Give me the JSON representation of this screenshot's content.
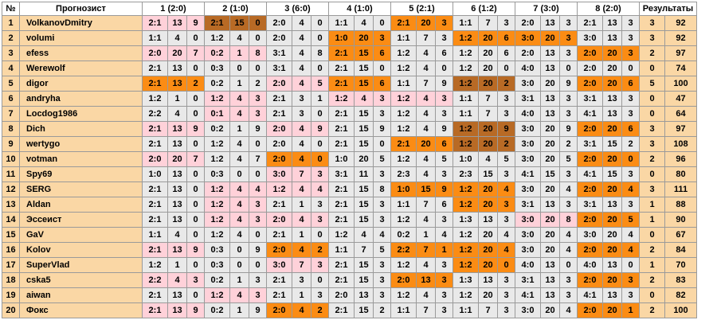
{
  "columns": {
    "num": "№",
    "name": "Прогнозист",
    "matches": [
      "1 (2:0)",
      "2 (1:0)",
      "3 (6:0)",
      "4 (1:0)",
      "5 (2:1)",
      "6 (1:2)",
      "7 (3:0)",
      "8 (2:0)"
    ],
    "results": "Результаты"
  },
  "colors": {
    "gray": "#e9e9e9",
    "pink": "#ffd1d9",
    "orange": "#fb8c14",
    "brown": "#b86a25",
    "name_bg": "#fad7a5"
  },
  "rows": [
    {
      "num": "1",
      "name": "VolkanovDmitry",
      "cells": [
        [
          "2:1",
          "13",
          "9",
          "p"
        ],
        [
          "2:1",
          "15",
          "0",
          "b"
        ],
        [
          "2:0",
          "4",
          "0",
          "g"
        ],
        [
          "1:1",
          "4",
          "0",
          "g"
        ],
        [
          "2:1",
          "20",
          "3",
          "o"
        ],
        [
          "1:1",
          "7",
          "3",
          "g"
        ],
        [
          "2:0",
          "13",
          "3",
          "g"
        ],
        [
          "2:1",
          "13",
          "3",
          "g"
        ]
      ],
      "r1": "3",
      "r2": "92"
    },
    {
      "num": "2",
      "name": "volumi",
      "cells": [
        [
          "1:1",
          "4",
          "0",
          "g"
        ],
        [
          "1:2",
          "4",
          "0",
          "g"
        ],
        [
          "2:0",
          "4",
          "0",
          "g"
        ],
        [
          "1:0",
          "20",
          "3",
          "o"
        ],
        [
          "1:1",
          "7",
          "3",
          "g"
        ],
        [
          "1:2",
          "20",
          "6",
          "o"
        ],
        [
          "3:0",
          "20",
          "3",
          "o"
        ],
        [
          "3:0",
          "13",
          "3",
          "g"
        ]
      ],
      "r1": "3",
      "r2": "92"
    },
    {
      "num": "3",
      "name": "efess",
      "cells": [
        [
          "2:0",
          "20",
          "7",
          "p"
        ],
        [
          "0:2",
          "1",
          "8",
          "p"
        ],
        [
          "3:1",
          "4",
          "8",
          "g"
        ],
        [
          "2:1",
          "15",
          "6",
          "o"
        ],
        [
          "1:2",
          "4",
          "6",
          "g"
        ],
        [
          "1:2",
          "20",
          "6",
          "g"
        ],
        [
          "2:0",
          "13",
          "3",
          "g"
        ],
        [
          "2:0",
          "20",
          "3",
          "o"
        ]
      ],
      "r1": "2",
      "r2": "97"
    },
    {
      "num": "4",
      "name": "Werewolf",
      "cells": [
        [
          "2:1",
          "13",
          "0",
          "g"
        ],
        [
          "0:3",
          "0",
          "0",
          "g"
        ],
        [
          "3:1",
          "4",
          "0",
          "g"
        ],
        [
          "2:1",
          "15",
          "0",
          "g"
        ],
        [
          "1:2",
          "4",
          "0",
          "g"
        ],
        [
          "1:2",
          "20",
          "0",
          "g"
        ],
        [
          "4:0",
          "13",
          "0",
          "g"
        ],
        [
          "2:0",
          "20",
          "0",
          "g"
        ]
      ],
      "r1": "0",
      "r2": "74"
    },
    {
      "num": "5",
      "name": "digor",
      "cells": [
        [
          "2:1",
          "13",
          "2",
          "o"
        ],
        [
          "0:2",
          "1",
          "2",
          "g"
        ],
        [
          "2:0",
          "4",
          "5",
          "p"
        ],
        [
          "2:1",
          "15",
          "6",
          "o"
        ],
        [
          "1:1",
          "7",
          "9",
          "g"
        ],
        [
          "1:2",
          "20",
          "2",
          "b"
        ],
        [
          "3:0",
          "20",
          "9",
          "g"
        ],
        [
          "2:0",
          "20",
          "6",
          "o"
        ]
      ],
      "r1": "5",
      "r2": "100"
    },
    {
      "num": "6",
      "name": "andryha",
      "cells": [
        [
          "1:2",
          "1",
          "0",
          "g"
        ],
        [
          "1:2",
          "4",
          "3",
          "p"
        ],
        [
          "2:1",
          "3",
          "1",
          "g"
        ],
        [
          "1:2",
          "4",
          "3",
          "p"
        ],
        [
          "1:2",
          "4",
          "3",
          "p"
        ],
        [
          "1:1",
          "7",
          "3",
          "g"
        ],
        [
          "3:1",
          "13",
          "3",
          "g"
        ],
        [
          "3:1",
          "13",
          "3",
          "g"
        ]
      ],
      "r1": "0",
      "r2": "47"
    },
    {
      "num": "7",
      "name": "Locdog1986",
      "cells": [
        [
          "2:2",
          "4",
          "0",
          "g"
        ],
        [
          "0:1",
          "4",
          "3",
          "p"
        ],
        [
          "2:1",
          "3",
          "0",
          "g"
        ],
        [
          "2:1",
          "15",
          "3",
          "g"
        ],
        [
          "1:2",
          "4",
          "3",
          "g"
        ],
        [
          "1:1",
          "7",
          "3",
          "g"
        ],
        [
          "4:0",
          "13",
          "3",
          "g"
        ],
        [
          "4:1",
          "13",
          "3",
          "g"
        ]
      ],
      "r1": "0",
      "r2": "64"
    },
    {
      "num": "8",
      "name": "Dich",
      "cells": [
        [
          "2:1",
          "13",
          "9",
          "p"
        ],
        [
          "0:2",
          "1",
          "9",
          "g"
        ],
        [
          "2:0",
          "4",
          "9",
          "p"
        ],
        [
          "2:1",
          "15",
          "9",
          "g"
        ],
        [
          "1:2",
          "4",
          "9",
          "g"
        ],
        [
          "1:2",
          "20",
          "9",
          "b"
        ],
        [
          "3:0",
          "20",
          "9",
          "g"
        ],
        [
          "2:0",
          "20",
          "6",
          "o"
        ]
      ],
      "r1": "3",
      "r2": "97"
    },
    {
      "num": "9",
      "name": "wertygo",
      "cells": [
        [
          "2:1",
          "13",
          "0",
          "g"
        ],
        [
          "1:2",
          "4",
          "0",
          "g"
        ],
        [
          "2:0",
          "4",
          "0",
          "g"
        ],
        [
          "2:1",
          "15",
          "0",
          "g"
        ],
        [
          "2:1",
          "20",
          "6",
          "o"
        ],
        [
          "1:2",
          "20",
          "2",
          "b"
        ],
        [
          "3:0",
          "20",
          "2",
          "g"
        ],
        [
          "3:1",
          "15",
          "2",
          "g"
        ]
      ],
      "r1": "3",
      "r2": "108"
    },
    {
      "num": "10",
      "name": "votman",
      "cells": [
        [
          "2:0",
          "20",
          "7",
          "p"
        ],
        [
          "1:2",
          "4",
          "7",
          "g"
        ],
        [
          "2:0",
          "4",
          "0",
          "o"
        ],
        [
          "1:0",
          "20",
          "5",
          "g"
        ],
        [
          "1:2",
          "4",
          "5",
          "g"
        ],
        [
          "1:0",
          "4",
          "5",
          "g"
        ],
        [
          "3:0",
          "20",
          "5",
          "g"
        ],
        [
          "2:0",
          "20",
          "0",
          "o"
        ]
      ],
      "r1": "2",
      "r2": "96"
    },
    {
      "num": "11",
      "name": "Spy69",
      "cells": [
        [
          "1:0",
          "13",
          "0",
          "g"
        ],
        [
          "0:3",
          "0",
          "0",
          "g"
        ],
        [
          "3:0",
          "7",
          "3",
          "p"
        ],
        [
          "3:1",
          "11",
          "3",
          "g"
        ],
        [
          "2:3",
          "4",
          "3",
          "g"
        ],
        [
          "2:3",
          "15",
          "3",
          "g"
        ],
        [
          "4:1",
          "15",
          "3",
          "g"
        ],
        [
          "4:1",
          "15",
          "3",
          "g"
        ]
      ],
      "r1": "0",
      "r2": "80"
    },
    {
      "num": "12",
      "name": "SERG",
      "cells": [
        [
          "2:1",
          "13",
          "0",
          "g"
        ],
        [
          "1:2",
          "4",
          "4",
          "p"
        ],
        [
          "1:2",
          "4",
          "4",
          "p"
        ],
        [
          "2:1",
          "15",
          "8",
          "g"
        ],
        [
          "1:0",
          "15",
          "9",
          "o"
        ],
        [
          "1:2",
          "20",
          "4",
          "o"
        ],
        [
          "3:0",
          "20",
          "4",
          "g"
        ],
        [
          "2:0",
          "20",
          "4",
          "o"
        ]
      ],
      "r1": "3",
      "r2": "111"
    },
    {
      "num": "13",
      "name": "Aldan",
      "cells": [
        [
          "2:1",
          "13",
          "0",
          "g"
        ],
        [
          "1:2",
          "4",
          "3",
          "p"
        ],
        [
          "2:1",
          "1",
          "3",
          "g"
        ],
        [
          "2:1",
          "15",
          "3",
          "g"
        ],
        [
          "1:1",
          "7",
          "6",
          "g"
        ],
        [
          "1:2",
          "20",
          "3",
          "o"
        ],
        [
          "3:1",
          "13",
          "3",
          "g"
        ],
        [
          "3:1",
          "13",
          "3",
          "g"
        ]
      ],
      "r1": "1",
      "r2": "88"
    },
    {
      "num": "14",
      "name": "Эссеист",
      "cells": [
        [
          "2:1",
          "13",
          "0",
          "g"
        ],
        [
          "1:2",
          "4",
          "3",
          "p"
        ],
        [
          "2:0",
          "4",
          "3",
          "p"
        ],
        [
          "2:1",
          "15",
          "3",
          "g"
        ],
        [
          "1:2",
          "4",
          "3",
          "g"
        ],
        [
          "1:3",
          "13",
          "3",
          "g"
        ],
        [
          "3:0",
          "20",
          "8",
          "p"
        ],
        [
          "2:0",
          "20",
          "5",
          "o"
        ]
      ],
      "r1": "1",
      "r2": "90"
    },
    {
      "num": "15",
      "name": "GaV",
      "cells": [
        [
          "1:1",
          "4",
          "0",
          "g"
        ],
        [
          "1:2",
          "4",
          "0",
          "g"
        ],
        [
          "2:1",
          "1",
          "0",
          "g"
        ],
        [
          "1:2",
          "4",
          "4",
          "g"
        ],
        [
          "0:2",
          "1",
          "4",
          "g"
        ],
        [
          "1:2",
          "20",
          "4",
          "g"
        ],
        [
          "3:0",
          "20",
          "4",
          "g"
        ],
        [
          "3:0",
          "20",
          "4",
          "g"
        ]
      ],
      "r1": "0",
      "r2": "67"
    },
    {
      "num": "16",
      "name": "Kolov",
      "cells": [
        [
          "2:1",
          "13",
          "9",
          "p"
        ],
        [
          "0:3",
          "0",
          "9",
          "g"
        ],
        [
          "2:0",
          "4",
          "2",
          "o"
        ],
        [
          "1:1",
          "7",
          "5",
          "g"
        ],
        [
          "2:2",
          "7",
          "1",
          "o"
        ],
        [
          "1:2",
          "20",
          "4",
          "o"
        ],
        [
          "3:0",
          "20",
          "4",
          "g"
        ],
        [
          "2:0",
          "20",
          "4",
          "o"
        ]
      ],
      "r1": "2",
      "r2": "84"
    },
    {
      "num": "17",
      "name": "SuperVlad",
      "cells": [
        [
          "1:2",
          "1",
          "0",
          "g"
        ],
        [
          "0:3",
          "0",
          "0",
          "g"
        ],
        [
          "3:0",
          "7",
          "3",
          "p"
        ],
        [
          "2:1",
          "15",
          "3",
          "g"
        ],
        [
          "1:2",
          "4",
          "3",
          "g"
        ],
        [
          "1:2",
          "20",
          "0",
          "o"
        ],
        [
          "4:0",
          "13",
          "0",
          "g"
        ],
        [
          "4:0",
          "13",
          "0",
          "g"
        ]
      ],
      "r1": "1",
      "r2": "70"
    },
    {
      "num": "18",
      "name": "cska5",
      "cells": [
        [
          "2:2",
          "4",
          "3",
          "p"
        ],
        [
          "0:2",
          "1",
          "3",
          "g"
        ],
        [
          "2:1",
          "3",
          "0",
          "g"
        ],
        [
          "2:1",
          "15",
          "3",
          "g"
        ],
        [
          "2:0",
          "13",
          "3",
          "o"
        ],
        [
          "1:3",
          "13",
          "3",
          "g"
        ],
        [
          "3:1",
          "13",
          "3",
          "g"
        ],
        [
          "2:0",
          "20",
          "3",
          "o"
        ]
      ],
      "r1": "2",
      "r2": "83"
    },
    {
      "num": "19",
      "name": "aiwan",
      "cells": [
        [
          "2:1",
          "13",
          "0",
          "g"
        ],
        [
          "1:2",
          "4",
          "3",
          "p"
        ],
        [
          "2:1",
          "1",
          "3",
          "g"
        ],
        [
          "2:0",
          "13",
          "3",
          "g"
        ],
        [
          "1:2",
          "4",
          "3",
          "g"
        ],
        [
          "1:2",
          "20",
          "3",
          "g"
        ],
        [
          "4:1",
          "13",
          "3",
          "g"
        ],
        [
          "4:1",
          "13",
          "3",
          "g"
        ]
      ],
      "r1": "0",
      "r2": "82"
    },
    {
      "num": "20",
      "name": "Фокс",
      "cells": [
        [
          "2:1",
          "13",
          "9",
          "p"
        ],
        [
          "0:2",
          "1",
          "9",
          "g"
        ],
        [
          "2:0",
          "4",
          "2",
          "o"
        ],
        [
          "2:1",
          "15",
          "2",
          "g"
        ],
        [
          "1:1",
          "7",
          "3",
          "g"
        ],
        [
          "1:1",
          "7",
          "3",
          "g"
        ],
        [
          "3:0",
          "20",
          "4",
          "g"
        ],
        [
          "2:0",
          "20",
          "1",
          "o"
        ]
      ],
      "r1": "2",
      "r2": "100"
    }
  ]
}
